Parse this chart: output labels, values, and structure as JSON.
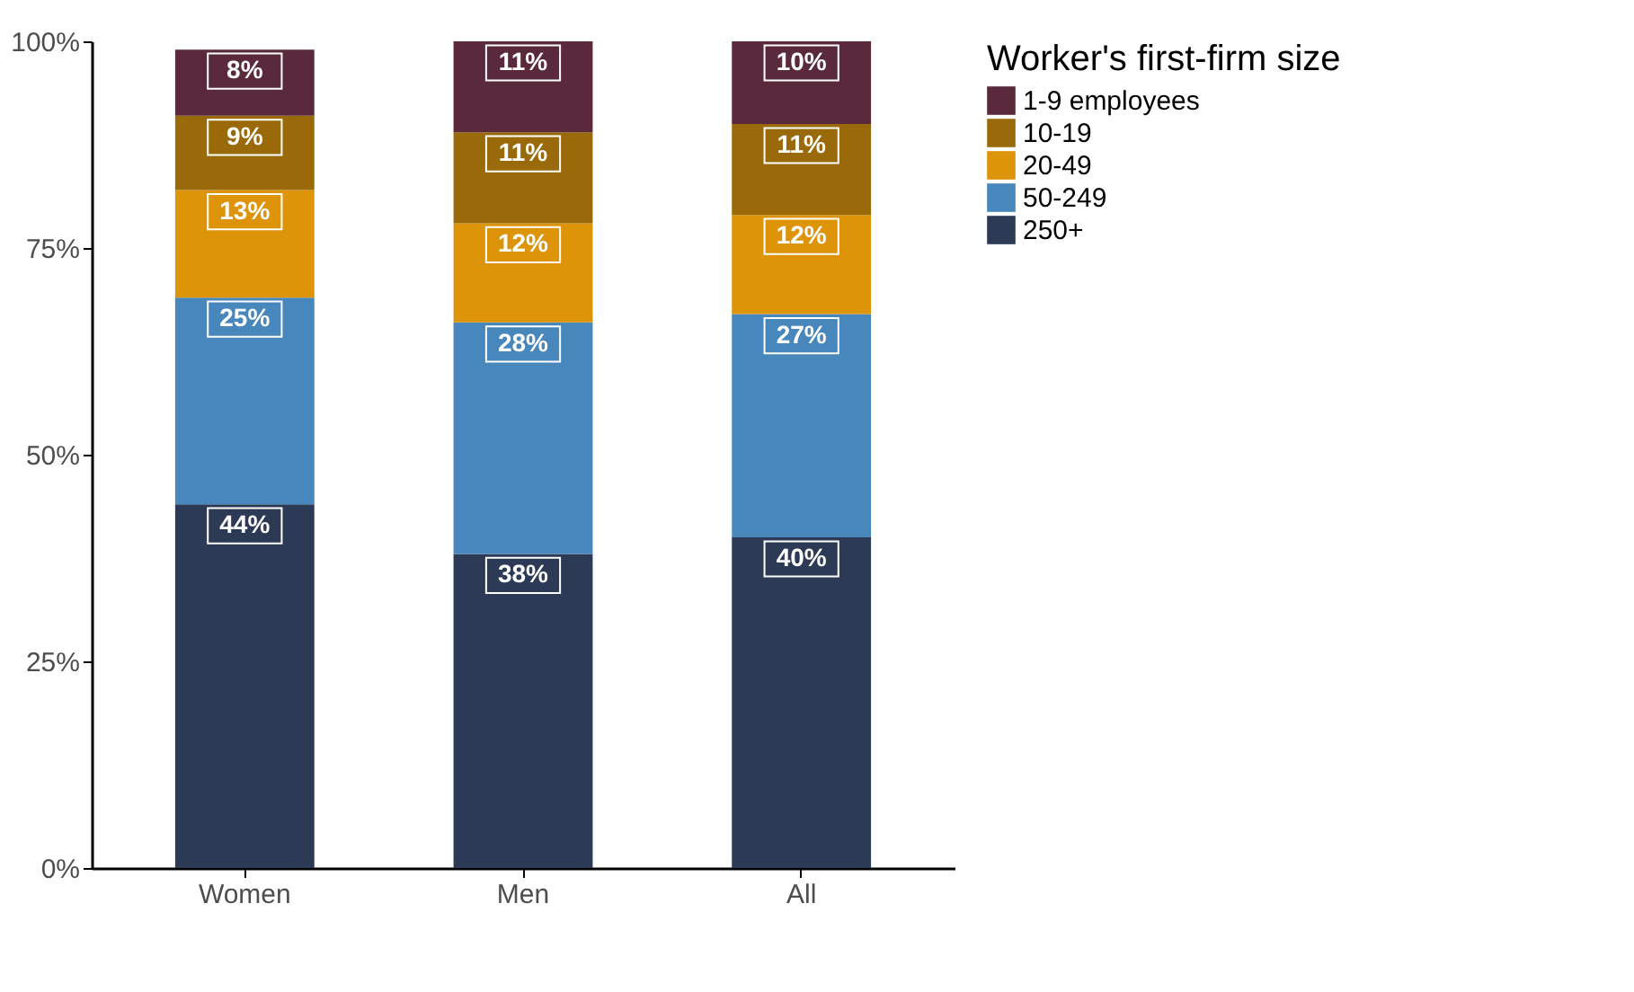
{
  "chart_data": {
    "type": "bar",
    "stacked": true,
    "categories": [
      "Women",
      "Men",
      "All"
    ],
    "legend_title": "Worker's first-firm size",
    "legend": "right",
    "grid": false,
    "ylim": [
      0,
      100
    ],
    "yticks": [
      {
        "value": 0,
        "label": "0%"
      },
      {
        "value": 25,
        "label": "25%"
      },
      {
        "value": 50,
        "label": "50%"
      },
      {
        "value": 75,
        "label": "75%"
      },
      {
        "value": 100,
        "label": "100%"
      }
    ],
    "series": [
      {
        "name": "250+",
        "color": "#2d3a56",
        "values": [
          44,
          38,
          40
        ],
        "value_labels": [
          "44%",
          "38%",
          "40%"
        ]
      },
      {
        "name": "50-249",
        "color": "#4787bb",
        "values": [
          25,
          28,
          27
        ],
        "value_labels": [
          "25%",
          "28%",
          "27%"
        ]
      },
      {
        "name": "20-49",
        "color": "#de9408",
        "values": [
          13,
          12,
          12
        ],
        "value_labels": [
          "13%",
          "12%",
          "12%"
        ]
      },
      {
        "name": "10-19",
        "color": "#9a6a0a",
        "values": [
          9,
          11,
          11
        ],
        "value_labels": [
          "9%",
          "11%",
          "11%"
        ]
      },
      {
        "name": "1-9 employees",
        "color": "#5a2a3c",
        "values": [
          8,
          11,
          10
        ],
        "value_labels": [
          "8%",
          "11%",
          "10%"
        ]
      }
    ]
  }
}
